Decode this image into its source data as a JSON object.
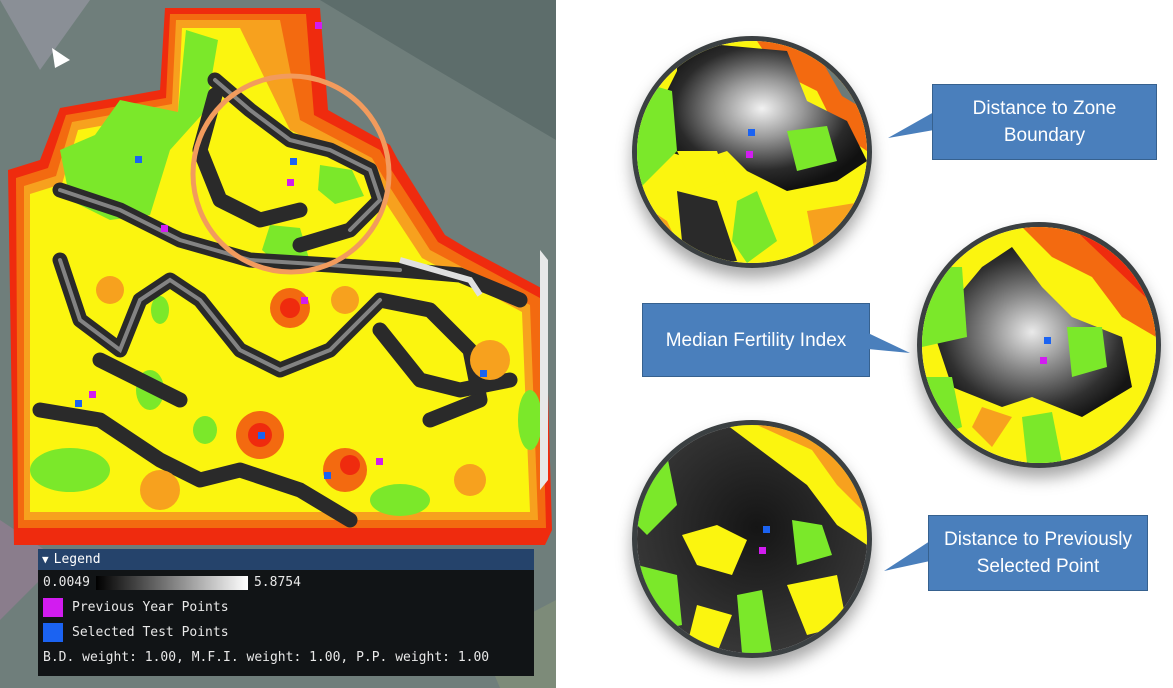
{
  "legend": {
    "title": "Legend",
    "scale_min": "0.0049",
    "scale_max": "5.8754",
    "items": [
      {
        "label": "Previous Year Points",
        "color": "#d21cf0"
      },
      {
        "label": "Selected Test Points",
        "color": "#1b63f2"
      }
    ],
    "weights_text": "B.D. weight: 1.00, M.F.I. weight: 1.00, P.P. weight: 1.00"
  },
  "callouts": [
    {
      "line1": "Distance to Zone",
      "line2": "Boundary"
    },
    {
      "line1": "Median Fertility Index",
      "line2": ""
    },
    {
      "line1": "Distance to Previously",
      "line2": "Selected Point"
    }
  ],
  "colors": {
    "zone_red": "#ef2b0e",
    "zone_orange": "#f36a10",
    "zone_light_orange": "#f7a11e",
    "zone_yellow": "#fbf50f",
    "zone_green": "#7be82a",
    "highlight_circle": "#f29b5d",
    "callout_blue": "#4a7fbc"
  }
}
